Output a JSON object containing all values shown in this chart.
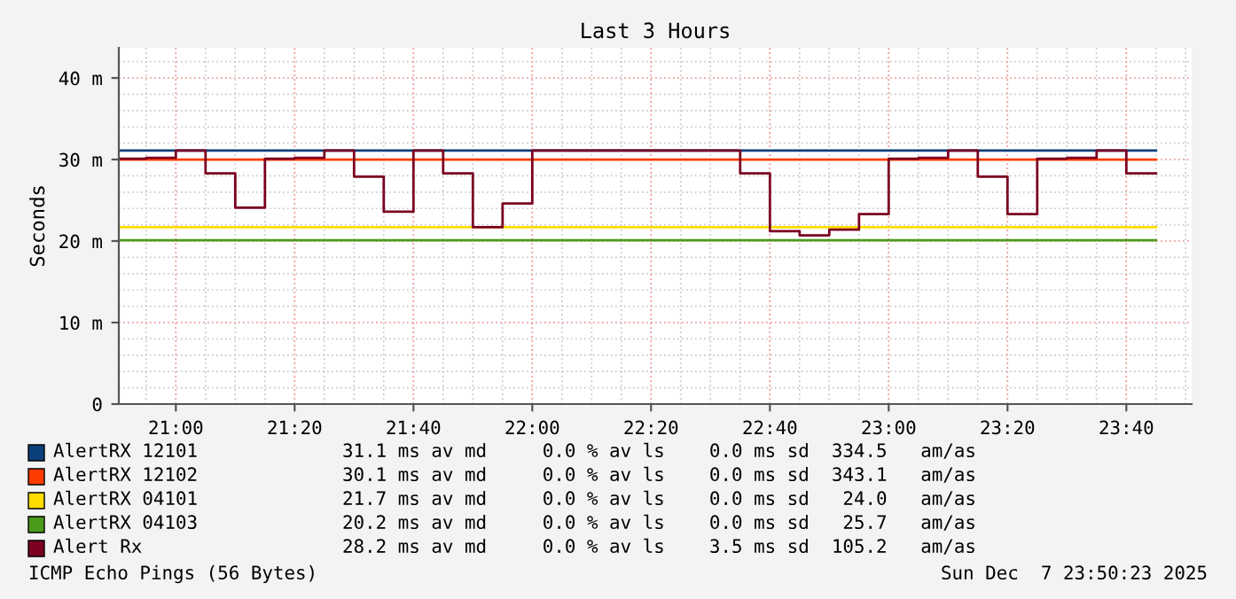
{
  "chart_data": {
    "type": "step",
    "title": "Last 3 Hours",
    "ylabel": "Seconds",
    "xlim": [
      20.84,
      23.85
    ],
    "ylim": [
      0,
      43.7
    ],
    "xticks": [
      {
        "value": 21.0,
        "label": "21:00"
      },
      {
        "value": 21.3333,
        "label": "21:20"
      },
      {
        "value": 21.6667,
        "label": "21:40"
      },
      {
        "value": 22.0,
        "label": "22:00"
      },
      {
        "value": 22.3333,
        "label": "22:20"
      },
      {
        "value": 22.6667,
        "label": "22:40"
      },
      {
        "value": 23.0,
        "label": "23:00"
      },
      {
        "value": 23.3333,
        "label": "23:20"
      },
      {
        "value": 23.6667,
        "label": "23:40"
      }
    ],
    "yticks": [
      0,
      {
        "value": 10,
        "label": "10 m"
      },
      {
        "value": 20,
        "label": "20 m"
      },
      {
        "value": 30,
        "label": "30 m"
      },
      {
        "value": 40,
        "label": "40 m"
      }
    ],
    "grid": true,
    "legend": "bottom",
    "series": [
      {
        "name": "AlertRX 12101",
        "color": "#0b3f7a",
        "x": [
          20.84,
          23.75
        ],
        "values": [
          31.1,
          31.1
        ]
      },
      {
        "name": "AlertRX 12102",
        "color": "#ff3c00",
        "x": [
          20.84,
          23.75
        ],
        "values": [
          30.0,
          30.0
        ]
      },
      {
        "name": "AlertRX 04101",
        "color": "#ffdd00",
        "x": [
          20.84,
          23.75
        ],
        "values": [
          21.7,
          21.7
        ]
      },
      {
        "name": "AlertRX 04103",
        "color": "#4c9a1c",
        "x": [
          20.84,
          23.75
        ],
        "values": [
          20.1,
          20.1
        ]
      },
      {
        "name": "Alert Rx",
        "color": "#7b0020",
        "x": [
          20.84,
          20.9167,
          21.0,
          21.0833,
          21.1667,
          21.25,
          21.3333,
          21.4167,
          21.5,
          21.5833,
          21.6667,
          21.75,
          21.8333,
          21.9167,
          22.0,
          22.0833,
          22.1667,
          22.25,
          22.3333,
          22.4167,
          22.5,
          22.5833,
          22.6667,
          22.75,
          22.8333,
          22.9167,
          23.0,
          23.0833,
          23.1667,
          23.25,
          23.3333,
          23.4167,
          23.5,
          23.5833,
          23.6667,
          23.75
        ],
        "values": [
          30.1,
          30.2,
          31.1,
          28.3,
          24.1,
          30.1,
          30.2,
          31.1,
          27.9,
          23.6,
          31.1,
          28.3,
          21.7,
          24.6,
          31.1,
          31.1,
          31.1,
          31.1,
          31.1,
          31.1,
          31.1,
          28.3,
          21.2,
          20.7,
          21.4,
          23.3,
          30.1,
          30.2,
          31.1,
          27.9,
          23.3,
          30.1,
          30.2,
          31.1,
          28.3,
          28.3
        ]
      }
    ],
    "annotations": [
      "31.1 ms av md     0.0 % av ls    0.0 ms sd  334.5   am/as",
      "30.1 ms av md     0.0 % av ls    0.0 ms sd  343.1   am/as",
      "21.7 ms av md     0.0 % av ls    0.0 ms sd   24.0   am/as",
      "20.2 ms av md     0.0 % av ls    0.0 ms sd   25.7   am/as",
      "28.2 ms av md     0.0 % av ls    3.5 ms sd  105.2   am/as",
      "ICMP Echo Pings (56 Bytes)",
      "Sun Dec  7 23:50:23 2025"
    ]
  }
}
